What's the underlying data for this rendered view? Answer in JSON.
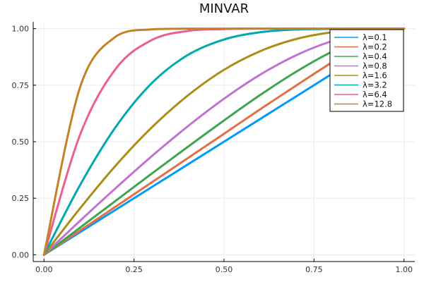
{
  "chart_data": {
    "type": "line",
    "title": "MINVAR",
    "xlabel": "",
    "ylabel": "",
    "xlim": [
      0,
      1
    ],
    "ylim": [
      0,
      1
    ],
    "x_ticks": [
      0,
      0.25,
      0.5,
      0.75,
      1
    ],
    "x_tick_labels": [
      "0.00",
      "0.25",
      "0.50",
      "0.75",
      "1.00"
    ],
    "y_ticks": [
      0,
      0.25,
      0.5,
      0.75,
      1
    ],
    "y_tick_labels": [
      "0.00",
      "0.25",
      "0.50",
      "0.75",
      "1.00"
    ],
    "grid": true,
    "legend_position": "top-right",
    "x": [
      0,
      0.1,
      0.2,
      0.3,
      0.4,
      0.5,
      0.6,
      0.7,
      0.8,
      0.9,
      1.0
    ],
    "series": [
      {
        "name": "λ=0.1",
        "color": "#009af9",
        "values": [
          0,
          0.1,
          0.2,
          0.3,
          0.4,
          0.5,
          0.6,
          0.7,
          0.8,
          0.9,
          1.0
        ]
      },
      {
        "name": "λ=0.2",
        "color": "#e26f46",
        "values": [
          0,
          0.107,
          0.214,
          0.321,
          0.428,
          0.535,
          0.643,
          0.748,
          0.851,
          0.945,
          1.0
        ]
      },
      {
        "name": "λ=0.4",
        "color": "#3ea44e",
        "values": [
          0,
          0.12,
          0.24,
          0.36,
          0.478,
          0.594,
          0.706,
          0.809,
          0.898,
          0.965,
          1.0
        ]
      },
      {
        "name": "λ=0.8",
        "color": "#c271d2",
        "values": [
          0,
          0.15,
          0.296,
          0.437,
          0.569,
          0.69,
          0.796,
          0.882,
          0.945,
          0.985,
          1.0
        ]
      },
      {
        "name": "λ=1.6",
        "color": "#ac8d18",
        "values": [
          0,
          0.205,
          0.396,
          0.564,
          0.705,
          0.818,
          0.9,
          0.954,
          0.984,
          0.997,
          1.0
        ]
      },
      {
        "name": "λ=3.2",
        "color": "#00a9ad",
        "values": [
          0,
          0.308,
          0.567,
          0.76,
          0.884,
          0.952,
          0.984,
          0.996,
          0.999,
          1.0,
          1.0
        ]
      },
      {
        "name": "λ=6.4",
        "color": "#ed5e93",
        "values": [
          0,
          0.53,
          0.824,
          0.95,
          0.99,
          0.998,
          1.0,
          1.0,
          1.0,
          1.0,
          1.0
        ]
      },
      {
        "name": "λ=12.8",
        "color": "#c68125",
        "values": [
          0,
          0.74,
          0.966,
          0.997,
          1.0,
          1.0,
          1.0,
          1.0,
          1.0,
          1.0,
          1.0
        ]
      }
    ]
  }
}
